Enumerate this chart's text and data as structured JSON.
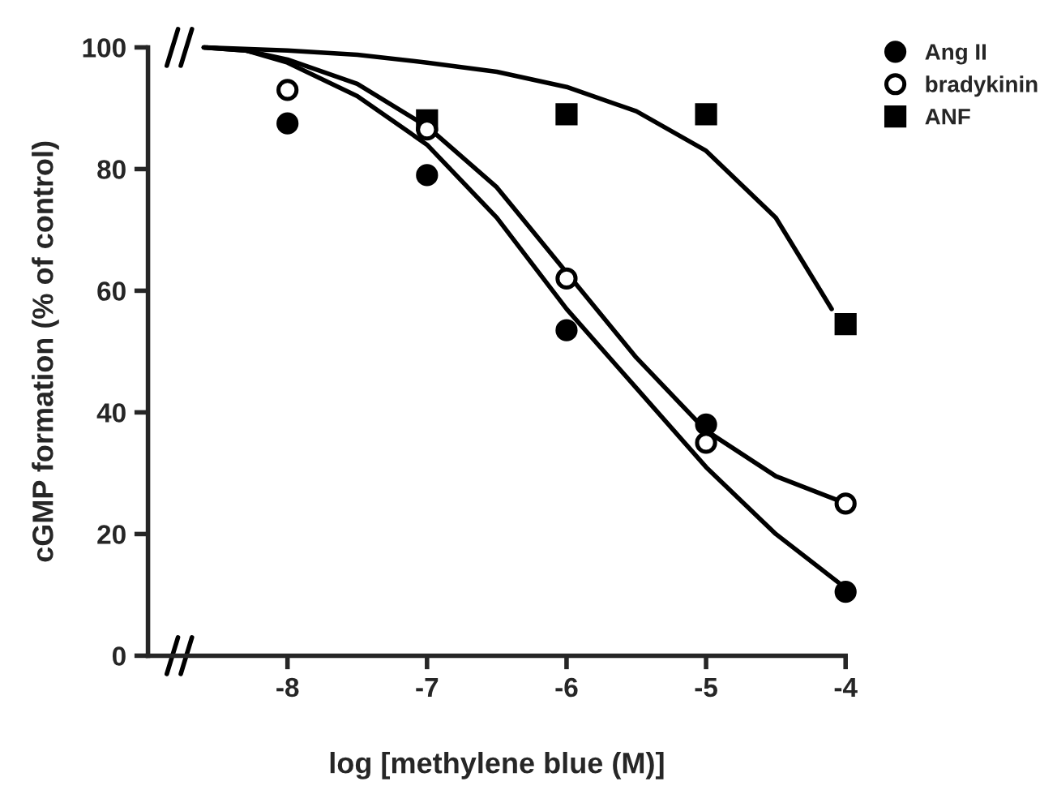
{
  "chart_data": {
    "type": "scatter",
    "xlabel": "log [methylene blue (M)]",
    "ylabel": "cGMP formation (% of control)",
    "xlim": [
      -9,
      -4
    ],
    "xticks": [
      -8,
      -7,
      -6,
      -5,
      -4
    ],
    "ylim": [
      0,
      100
    ],
    "yticks": [
      0,
      20,
      40,
      60,
      80,
      100
    ],
    "grid": false,
    "legend": "top right",
    "series": [
      {
        "name": "Ang II",
        "color": "#000000",
        "marker": "circle",
        "x": [
          -8,
          -7,
          -6,
          -5,
          -4
        ],
        "values": [
          87.5,
          79,
          53.5,
          38,
          10.5
        ]
      },
      {
        "name": "bradykinin",
        "color": "#ffffff",
        "marker": "circle",
        "x": [
          -8,
          -7,
          -6,
          -5,
          -4
        ],
        "values": [
          93,
          86.5,
          62,
          35,
          25
        ]
      },
      {
        "name": "ANF",
        "color": "#000000",
        "marker": "square",
        "x": [
          -7,
          -6,
          -5,
          -4
        ],
        "values": [
          88,
          89,
          89,
          54.5
        ]
      },
      {
        "type": "line",
        "color": "#000000",
        "marker": "none",
        "x": [
          -8.6,
          -8.3,
          -8,
          -7.5,
          -7,
          -6.5,
          -6,
          -5.5,
          -5,
          -4.5,
          -4.05
        ],
        "values": [
          100,
          99.5,
          97.5,
          92,
          84,
          72,
          57,
          44,
          31,
          20,
          12
        ]
      },
      {
        "type": "line",
        "color": "#000000",
        "marker": "none",
        "x": [
          -8.6,
          -8.3,
          -8,
          -7.5,
          -7,
          -6.5,
          -6,
          -5.5,
          -5,
          -4.5,
          -4.05
        ],
        "values": [
          100,
          99.5,
          98,
          94,
          87,
          77,
          63,
          49,
          37,
          29.5,
          25.5
        ]
      },
      {
        "type": "line",
        "color": "#000000",
        "marker": "none",
        "x": [
          -8.6,
          -8,
          -7.5,
          -7,
          -6.5,
          -6,
          -5.5,
          -5,
          -4.5,
          -4.1
        ],
        "values": [
          100,
          99.5,
          98.8,
          97.5,
          96,
          93.5,
          89.5,
          83,
          72,
          57
        ]
      }
    ]
  }
}
